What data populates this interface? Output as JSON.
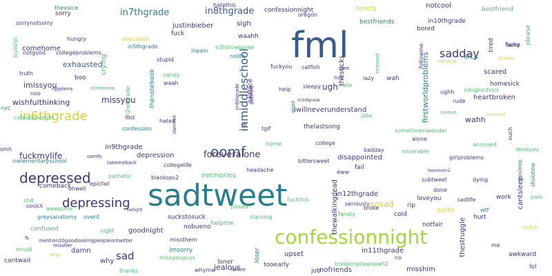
{
  "palette": {
    "purple": "#46327e",
    "blue": "#365c8d",
    "teal": "#277f8e",
    "green": "#1fa187",
    "lime": "#4ac16d",
    "yellow_green": "#a0da39",
    "yellow": "#d5d23a"
  },
  "words": [
    {
      "text": "fml",
      "color": "blue",
      "vertical": false
    },
    {
      "text": "sadtweet",
      "color": "teal",
      "vertical": false
    },
    {
      "text": "confessionnight",
      "color": "yellow_green",
      "vertical": false
    },
    {
      "text": "depressed",
      "color": "purple",
      "vertical": false
    },
    {
      "text": "in6thgrade",
      "color": "yellow",
      "vertical": false
    },
    {
      "text": "depressing",
      "color": "purple",
      "vertical": false
    },
    {
      "text": "oomf",
      "color": "blue",
      "vertical": false
    },
    {
      "text": "inmiddleschool",
      "color": "blue",
      "vertical": true
    },
    {
      "text": "sadday",
      "color": "purple",
      "vertical": false
    },
    {
      "text": "fuckmylife",
      "color": "purple",
      "vertical": false
    },
    {
      "text": "foreveralone",
      "color": "purple",
      "vertical": false
    },
    {
      "text": "in8thgrade",
      "color": "blue",
      "vertical": false
    },
    {
      "text": "in7thgrade",
      "color": "teal",
      "vertical": false
    },
    {
      "text": "sad",
      "color": "purple",
      "vertical": false
    },
    {
      "text": "missyou",
      "color": "purple",
      "vertical": false
    },
    {
      "text": "wishfulthinking",
      "color": "purple",
      "vertical": false
    },
    {
      "text": "imissyou",
      "color": "purple",
      "vertical": false
    },
    {
      "text": "exhausted",
      "color": "blue",
      "vertical": false
    },
    {
      "text": "comehome",
      "color": "purple",
      "vertical": false
    },
    {
      "text": "justinbieber",
      "color": "purple",
      "vertical": false
    },
    {
      "text": "sosad",
      "color": "yellow",
      "vertical": false
    },
    {
      "text": "thesucks",
      "color": "purple",
      "vertical": true
    },
    {
      "text": "ugh",
      "color": "purple",
      "vertical": false
    },
    {
      "text": "wahh",
      "color": "purple",
      "vertical": false
    },
    {
      "text": "firstworldproblems",
      "color": "teal",
      "vertical": true
    },
    {
      "text": "iwillneverunderstand",
      "color": "purple",
      "vertical": false
    },
    {
      "text": "disappointed",
      "color": "purple",
      "vertical": false
    },
    {
      "text": "depression",
      "color": "purple",
      "vertical": false
    },
    {
      "text": "in9thgrade",
      "color": "purple",
      "vertical": false
    },
    {
      "text": "in12thgrade",
      "color": "purple",
      "vertical": false
    },
    {
      "text": "memories",
      "color": "lime",
      "vertical": false
    },
    {
      "text": "goodnight",
      "color": "purple",
      "vertical": false
    },
    {
      "text": "jealous",
      "color": "purple",
      "vertical": false
    },
    {
      "text": "upset",
      "color": "purple",
      "vertical": false
    },
    {
      "text": "in11thgrade",
      "color": "purple",
      "vertical": false
    },
    {
      "text": "misshim",
      "color": "purple",
      "vertical": false
    },
    {
      "text": "thestruggle",
      "color": "purple",
      "vertical": true
    },
    {
      "text": "thewalkingdead",
      "color": "purple",
      "vertical": true
    },
    {
      "text": "cantsleep",
      "color": "purple",
      "vertical": true
    },
    {
      "text": "shootme",
      "color": "teal",
      "vertical": true
    },
    {
      "text": "sick",
      "color": "teal",
      "vertical": false
    },
    {
      "text": "scared",
      "color": "purple",
      "vertical": false
    },
    {
      "text": "homesick",
      "color": "purple",
      "vertical": false
    },
    {
      "text": "heartbroken",
      "color": "purple",
      "vertical": false
    },
    {
      "text": "lonely",
      "color": "yellow",
      "vertical": false
    },
    {
      "text": "notcool",
      "color": "purple",
      "vertical": false
    },
    {
      "text": "bestfriend",
      "color": "lime",
      "vertical": false
    },
    {
      "text": "bestfriends",
      "color": "teal",
      "vertical": false
    },
    {
      "text": "in10thgrade",
      "color": "purple",
      "vertical": false
    },
    {
      "text": "bored",
      "color": "purple",
      "vertical": false
    },
    {
      "text": "followme",
      "color": "purple",
      "vertical": true
    },
    {
      "text": "tired",
      "color": "purple",
      "vertical": true
    },
    {
      "text": "please",
      "color": "lime",
      "vertical": true
    },
    {
      "text": "crying",
      "color": "lime",
      "vertical": true
    },
    {
      "text": "confessionnight",
      "color": "purple",
      "vertical": false
    },
    {
      "text": "hatethis",
      "color": "purple",
      "vertical": false
    },
    {
      "text": "thevoice",
      "color": "teal",
      "vertical": false
    },
    {
      "text": "oregon",
      "color": "purple",
      "vertical": false
    },
    {
      "text": "sigh",
      "color": "purple",
      "vertical": false
    },
    {
      "text": "fuck",
      "color": "purple",
      "vertical": false
    },
    {
      "text": "waahh",
      "color": "purple",
      "vertical": false
    },
    {
      "text": "e3followspree",
      "color": "lime",
      "vertical": false
    },
    {
      "text": "nolife",
      "color": "teal",
      "vertical": false
    },
    {
      "text": "in5thgrade",
      "color": "teal",
      "vertical": false
    },
    {
      "text": "education",
      "color": "yellow",
      "vertical": false
    },
    {
      "text": "inpain",
      "color": "teal",
      "vertical": false
    },
    {
      "text": "stupid",
      "color": "purple",
      "vertical": false
    },
    {
      "text": "hungry",
      "color": "purple",
      "vertical": false
    },
    {
      "text": "collegeproblems",
      "color": "purple",
      "vertical": false
    },
    {
      "text": "notgood",
      "color": "purple",
      "vertical": false
    },
    {
      "text": "sorry",
      "color": "purple",
      "vertical": false
    },
    {
      "text": "sorrynotsorry",
      "color": "purple",
      "vertical": false
    },
    {
      "text": "fucky",
      "color": "purple",
      "vertical": false
    },
    {
      "text": "bullshit",
      "color": "lime",
      "vertical": true
    },
    {
      "text": "boo",
      "color": "purple",
      "vertical": false
    },
    {
      "text": "npjelena",
      "color": "purple",
      "vertical": false
    },
    {
      "text": "killmenow",
      "color": "lime",
      "vertical": false
    },
    {
      "text": "noo",
      "color": "purple",
      "vertical": false
    },
    {
      "text": "truth",
      "color": "purple",
      "vertical": false
    },
    {
      "text": "fuckyou",
      "color": "purple",
      "vertical": false
    },
    {
      "text": "catfish",
      "color": "purple",
      "vertical": false
    },
    {
      "text": "glee",
      "color": "purple",
      "vertical": false
    },
    {
      "text": "not",
      "color": "purple",
      "vertical": false
    },
    {
      "text": "lazy",
      "color": "purple",
      "vertical": false
    },
    {
      "text": "wah",
      "color": "purple",
      "vertical": false
    },
    {
      "text": "stressed",
      "color": "lime",
      "vertical": true
    },
    {
      "text": "hate",
      "color": "lime",
      "vertical": false
    },
    {
      "text": "sleepy",
      "color": "purple",
      "vertical": false
    },
    {
      "text": "help",
      "color": "purple",
      "vertical": false
    },
    {
      "text": "sadface",
      "color": "purple",
      "vertical": true
    },
    {
      "text": "sotired",
      "color": "purple",
      "vertical": true
    },
    {
      "text": "in4thgrade",
      "color": "purple",
      "vertical": true
    },
    {
      "text": "thenotebook",
      "color": "teal",
      "vertical": true
    },
    {
      "text": "in2ndgrade",
      "color": "lime",
      "vertical": true
    },
    {
      "text": "sandy",
      "color": "lime",
      "vertical": false
    },
    {
      "text": "waah",
      "color": "purple",
      "vertical": false
    },
    {
      "text": "lost",
      "color": "purple",
      "vertical": false
    },
    {
      "text": "confession",
      "color": "teal",
      "vertical": false
    },
    {
      "text": "hateit",
      "color": "purple",
      "vertical": false
    },
    {
      "text": "dammit",
      "color": "purple",
      "vertical": true
    },
    {
      "text": "jk",
      "color": "purple",
      "vertical": false
    },
    {
      "text": "tgif",
      "color": "purple",
      "vertical": false
    },
    {
      "text": "dead",
      "color": "teal",
      "vertical": true
    },
    {
      "text": "thelastsong",
      "color": "purple",
      "vertical": false
    },
    {
      "text": "jobs",
      "color": "lime",
      "vertical": false
    },
    {
      "text": "home",
      "color": "lime",
      "vertical": false
    },
    {
      "text": "college",
      "color": "purple",
      "vertical": false
    },
    {
      "text": "sometimesiwonder",
      "color": "lime",
      "vertical": false
    },
    {
      "text": "alone",
      "color": "purple",
      "vertical": false
    },
    {
      "text": "ouch",
      "color": "purple",
      "vertical": true
    },
    {
      "text": "annoyed",
      "color": "lime",
      "vertical": false
    },
    {
      "text": "iloveyou",
      "color": "lime",
      "vertical": false
    },
    {
      "text": "girlproblems",
      "color": "purple",
      "vertical": false
    },
    {
      "text": "nosleep",
      "color": "teal",
      "vertical": true
    },
    {
      "text": "badday",
      "color": "purple",
      "vertical": false
    },
    {
      "text": "miserable",
      "color": "lime",
      "vertical": false
    },
    {
      "text": "teenmom2",
      "color": "purple",
      "vertical": false
    },
    {
      "text": "subtweet",
      "color": "purple",
      "vertical": false
    },
    {
      "text": "dying",
      "color": "purple",
      "vertical": false
    },
    {
      "text": "work",
      "color": "purple",
      "vertical": false
    },
    {
      "text": "pain",
      "color": "lime",
      "vertical": false
    },
    {
      "text": "wtf",
      "color": "teal",
      "vertical": false
    },
    {
      "text": "hurt",
      "color": "purple",
      "vertical": false
    },
    {
      "text": "sadlife",
      "color": "purple",
      "vertical": false
    },
    {
      "text": "done",
      "color": "purple",
      "vertical": false
    },
    {
      "text": "sucks",
      "color": "yellow",
      "vertical": false
    },
    {
      "text": "loveyou",
      "color": "purple",
      "vertical": false
    },
    {
      "text": "rip",
      "color": "purple",
      "vertical": false
    },
    {
      "text": "cold",
      "color": "purple",
      "vertical": false
    },
    {
      "text": "broke",
      "color": "purple",
      "vertical": false
    },
    {
      "text": "family",
      "color": "lime",
      "vertical": false
    },
    {
      "text": "seriously",
      "color": "purple",
      "vertical": false
    },
    {
      "text": "fail",
      "color": "purple",
      "vertical": false
    },
    {
      "text": "eww",
      "color": "purple",
      "vertical": false
    },
    {
      "text": "bittersweet",
      "color": "purple",
      "vertical": false
    },
    {
      "text": "headache",
      "color": "purple",
      "vertical": false
    },
    {
      "text": "collegelife",
      "color": "purple",
      "vertical": false
    },
    {
      "text": "takemeback",
      "color": "purple",
      "vertical": false
    },
    {
      "text": "oomfs",
      "color": "purple",
      "vertical": false
    },
    {
      "text": "smh",
      "color": "purple",
      "vertical": false
    },
    {
      "text": "inelementaryschool",
      "color": "teal",
      "vertical": false
    },
    {
      "text": "comeback",
      "color": "purple",
      "vertical": false
    },
    {
      "text": "pathetic",
      "color": "lime",
      "vertical": false
    },
    {
      "text": "ohwell",
      "color": "purple",
      "vertical": false
    },
    {
      "text": "epicfail",
      "color": "purple",
      "vertical": false
    },
    {
      "text": "blackops2",
      "color": "purple",
      "vertical": false
    },
    {
      "text": "sosick",
      "color": "purple",
      "vertical": false
    },
    {
      "text": "shit",
      "color": "lime",
      "vertical": false
    },
    {
      "text": "awesome",
      "color": "lime",
      "vertical": false
    },
    {
      "text": "greysanatomy",
      "color": "teal",
      "vertical": false
    },
    {
      "text": "overit",
      "color": "teal",
      "vertical": false
    },
    {
      "text": "twilight",
      "color": "purple",
      "vertical": false
    },
    {
      "text": "suckstosuck",
      "color": "purple",
      "vertical": false
    },
    {
      "text": "pissed",
      "color": "lime",
      "vertical": false
    },
    {
      "text": "fuckthis",
      "color": "lime",
      "vertical": false
    },
    {
      "text": "nobueno",
      "color": "purple",
      "vertical": false
    },
    {
      "text": "helpme",
      "color": "lime",
      "vertical": false
    },
    {
      "text": "starving",
      "color": "lime",
      "vertical": false
    },
    {
      "text": "confused",
      "color": "lime",
      "vertical": false
    },
    {
      "text": "night",
      "color": "lime",
      "vertical": false
    },
    {
      "text": "missit",
      "color": "lime",
      "vertical": false
    },
    {
      "text": "fb",
      "color": "purple",
      "vertical": false
    },
    {
      "text": "mention20goodlookingpeopleontwitter",
      "color": "purple",
      "vertical": false
    },
    {
      "text": "missher",
      "color": "purple",
      "vertical": false
    },
    {
      "text": "damn",
      "color": "purple",
      "vertical": false
    },
    {
      "text": "whyy",
      "color": "yellow",
      "vertical": false
    },
    {
      "text": "why",
      "color": "purple",
      "vertical": false
    },
    {
      "text": "imsorry",
      "color": "teal",
      "vertical": false
    },
    {
      "text": "missthem",
      "color": "purple",
      "vertical": false
    },
    {
      "text": "missyouguys",
      "color": "lime",
      "vertical": false
    },
    {
      "text": "thanks",
      "color": "lime",
      "vertical": false
    },
    {
      "text": "cantwait",
      "color": "purple",
      "vertical": false
    },
    {
      "text": "loner",
      "color": "purple",
      "vertical": false
    },
    {
      "text": "whyme",
      "color": "purple",
      "vertical": false
    },
    {
      "text": "failure",
      "color": "purple",
      "vertical": false
    },
    {
      "text": "loser",
      "color": "teal",
      "vertical": true
    },
    {
      "text": "tooearly",
      "color": "purple",
      "vertical": false
    },
    {
      "text": "no",
      "color": "purple",
      "vertical": false
    },
    {
      "text": "nofriends",
      "color": "purple",
      "vertical": false
    },
    {
      "text": "breakingdawnpart2",
      "color": "lime",
      "vertical": false
    },
    {
      "text": "job",
      "color": "purple",
      "vertical": false
    },
    {
      "text": "me",
      "color": "purple",
      "vertical": false
    },
    {
      "text": "awkward",
      "color": "purple",
      "vertical": false
    },
    {
      "text": "lol",
      "color": "purple",
      "vertical": false
    },
    {
      "text": "notfair",
      "color": "purple",
      "vertical": false
    },
    {
      "text": "nofun",
      "color": "yellow",
      "vertical": false
    },
    {
      "text": "nyc",
      "color": "teal",
      "vertical": false
    },
    {
      "text": "cofessionnight",
      "color": "lime",
      "vertical": false
    },
    {
      "text": "ughh",
      "color": "purple",
      "vertical": false
    },
    {
      "text": "inhighschool",
      "color": "lime",
      "vertical": false
    },
    {
      "text": "rude",
      "color": "purple",
      "vertical": false
    },
    {
      "text": "nolove",
      "color": "lime",
      "vertical": false
    },
    {
      "text": "bummed",
      "color": "yellow",
      "vertical": false
    },
    {
      "text": "nervous",
      "color": "yellow",
      "vertical": false
    },
    {
      "text": "goaway",
      "color": "yellow",
      "vertical": false
    },
    {
      "text": "lame",
      "color": "purple",
      "vertical": false
    },
    {
      "text": "in3rdgrade",
      "color": "purple",
      "vertical": false
    }
  ]
}
